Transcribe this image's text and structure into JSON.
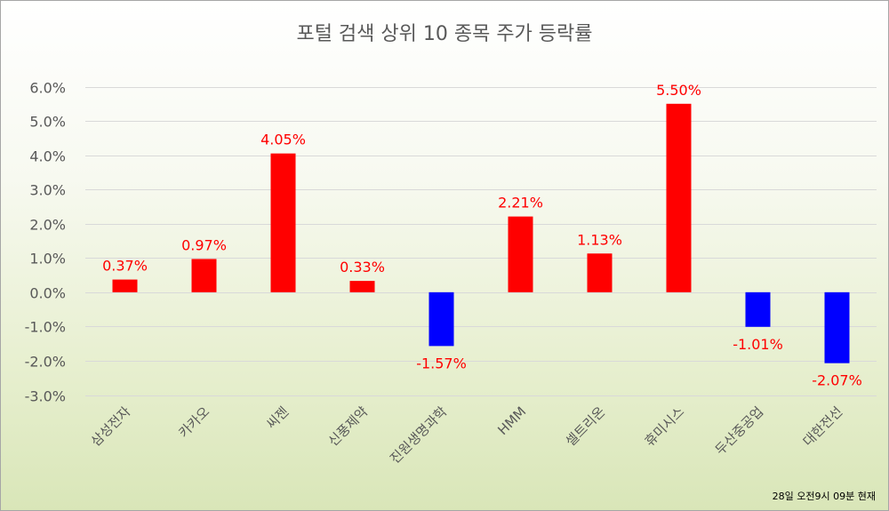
{
  "chart_data": {
    "type": "bar",
    "title": "포털 검색 상위 10 종목 주가 등락률",
    "categories": [
      "삼성전자",
      "카카오",
      "씨젠",
      "신풍제약",
      "진원생명과학",
      "HMM",
      "셀트리온",
      "휴미시스",
      "두산중공업",
      "대한전선"
    ],
    "values": [
      0.37,
      0.97,
      4.05,
      0.33,
      -1.57,
      2.21,
      1.13,
      5.5,
      -1.01,
      -2.07
    ],
    "value_labels": [
      "0.37%",
      "0.97%",
      "4.05%",
      "0.33%",
      "-1.57%",
      "2.21%",
      "1.13%",
      "5.50%",
      "-1.01%",
      "-2.07%"
    ],
    "ylim": [
      -3.0,
      6.0
    ],
    "y_ticks": [
      "6.0%",
      "5.0%",
      "4.0%",
      "3.0%",
      "2.0%",
      "1.0%",
      "0.0%",
      "-1.0%",
      "-2.0%",
      "-3.0%"
    ],
    "grid": true,
    "legend": false,
    "xlabel": "",
    "ylabel": "",
    "colors": {
      "positive": "#ff0000",
      "negative": "#0000ff",
      "label": "#ff0000"
    },
    "footnote": "28일 오전9시 09분 현재"
  }
}
